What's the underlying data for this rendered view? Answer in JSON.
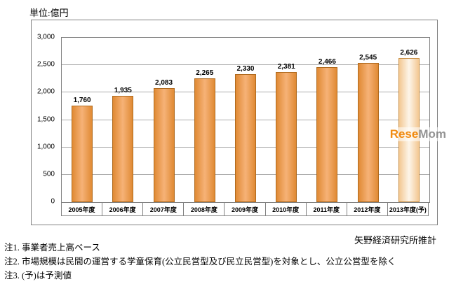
{
  "unit_label": "単位:億円",
  "source_label": "矢野経済研究所推計",
  "watermark": {
    "part1": "Rese",
    "part2": "Mom"
  },
  "notes": [
    "注1. 事業者売上高ベース",
    "注2. 市場規模は民間の運営する学童保育(公立民営型及び民立民営型)を対象とし、公立公営型を除く",
    "注3. (予)は予測値"
  ],
  "chart_data": {
    "type": "bar",
    "title": "",
    "xlabel": "",
    "ylabel": "億円",
    "categories": [
      "2005年度",
      "2006年度",
      "2007年度",
      "2008年度",
      "2009年度",
      "2010年度",
      "2011年度",
      "2012年度",
      "2013年度(予)"
    ],
    "values": [
      1760,
      1935,
      2083,
      2265,
      2330,
      2381,
      2466,
      2545,
      2626
    ],
    "value_labels": [
      "1,760",
      "1,935",
      "2,083",
      "2,265",
      "2,330",
      "2,381",
      "2,466",
      "2,545",
      "2,626"
    ],
    "ylim": [
      0,
      3000
    ],
    "ytick_values": [
      0,
      500,
      1000,
      1500,
      2000,
      2500,
      3000
    ],
    "ytick_labels": [
      "0",
      "500",
      "1,000",
      "1,500",
      "2,000",
      "2,500",
      "3,000"
    ],
    "grid": true,
    "legend": "none",
    "forecast_index": 8,
    "colors": {
      "bar_edge": "#E08A34",
      "bar_mid": "#F6B277",
      "bar_border": "#B06A1E",
      "forecast_edge": "#F3C893",
      "forecast_mid": "#FDF5E9",
      "forecast_border": "#C98F45",
      "gridline": "#ABABAB",
      "frame_border": "#808080"
    }
  }
}
